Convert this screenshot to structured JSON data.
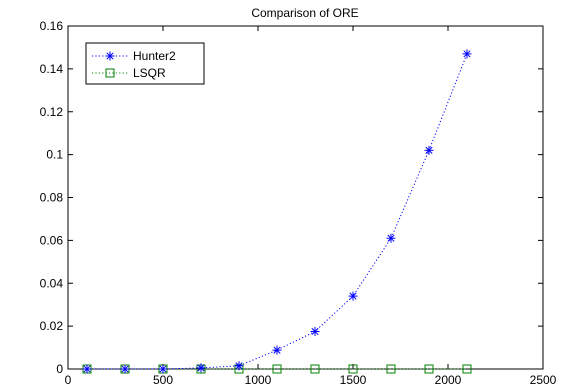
{
  "chart_data": {
    "type": "line",
    "title": "Comparison of ORE",
    "xlabel": "",
    "ylabel": "",
    "xlim": [
      0,
      2500
    ],
    "ylim": [
      0,
      0.16
    ],
    "xticks": [
      "0",
      "500",
      "1000",
      "1500",
      "2000",
      "2500"
    ],
    "yticks": [
      "0",
      "0.02",
      "0.04",
      "0.06",
      "0.08",
      "0.1",
      "0.12",
      "0.14",
      "0.16"
    ],
    "grid": false,
    "legend_position": "top-left",
    "x": [
      100,
      300,
      500,
      700,
      900,
      1100,
      1300,
      1500,
      1700,
      1900,
      2100
    ],
    "series": [
      {
        "name": "Hunter2",
        "marker": "asterisk",
        "linestyle": "dotted",
        "color": "#0000ff",
        "values": [
          0.0,
          0.0,
          0.0,
          0.0005,
          0.0015,
          0.0088,
          0.0175,
          0.034,
          0.061,
          0.102,
          0.147
        ]
      },
      {
        "name": "LSQR",
        "marker": "square",
        "linestyle": "dotted",
        "color": "#008000",
        "values": [
          0.0,
          0.0,
          0.0,
          0.0,
          0.0,
          0.0,
          0.0,
          0.0,
          0.0,
          0.0,
          0.0
        ]
      }
    ]
  }
}
